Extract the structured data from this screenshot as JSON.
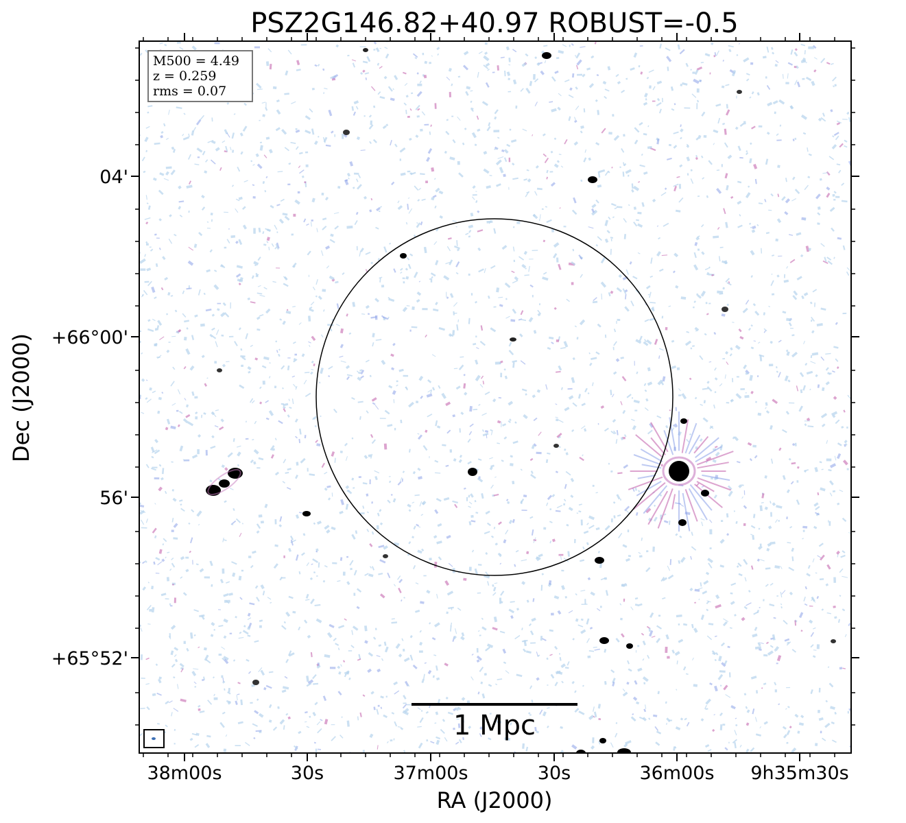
{
  "title": "PSZ2G146.82+40.97 ROBUST=-0.5",
  "xlabel": "RA (J2000)",
  "ylabel": "Dec (J2000)",
  "x_ticks": [
    "38m00s",
    "30s",
    "37m00s",
    "30s",
    "36m00s",
    "9h35m30s"
  ],
  "y_ticks": [
    "04'",
    "+66°00'",
    "56'",
    "+65°52'"
  ],
  "info": {
    "mass": "M500 = 4.49",
    "redshift": "z = 0.259",
    "rms": "rms = 0.07"
  },
  "scalebar_label": "1 Mpc",
  "colors": {
    "noise_light": "#b9d6ee",
    "noise_blue": "#8aa0e8",
    "noise_magenta": "#c05aa8",
    "source_core": "#000000",
    "frame": "#000000"
  },
  "sources": [
    {
      "name": "compact-source"
    },
    {
      "name": "bright-radio-source"
    },
    {
      "name": "extended-radio-source"
    }
  ]
}
